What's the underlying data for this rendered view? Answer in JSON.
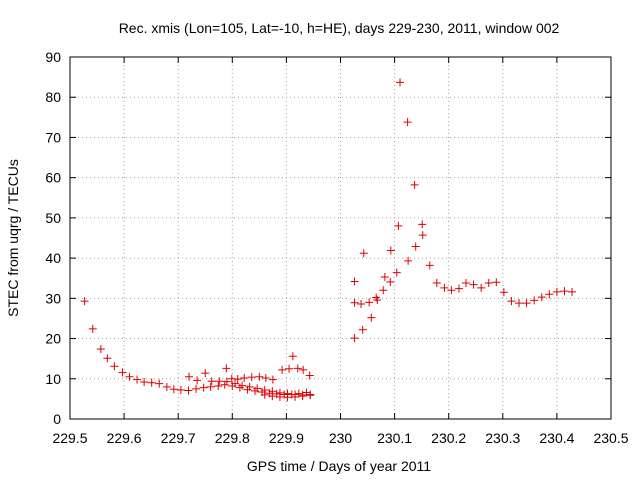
{
  "chart_data": {
    "type": "scatter",
    "title": "Rec. xmis (Lon=105, Lat=-10, h=HE), days 229-230, 2011, window 002",
    "xlabel": "GPS time / Days of year 2011",
    "ylabel": "STEC from uqrg / TECUs",
    "xlim": [
      229.5,
      230.5
    ],
    "ylim": [
      0,
      90
    ],
    "xticks": [
      229.5,
      229.6,
      229.7,
      229.8,
      229.9,
      230,
      230.1,
      230.2,
      230.3,
      230.4,
      230.5
    ],
    "xtick_labels": [
      "229.5",
      "229.6",
      "229.7",
      "229.8",
      "229.9",
      "230",
      "230.1",
      "230.2",
      "230.3",
      "230.4",
      "230.5"
    ],
    "yticks": [
      0,
      10,
      20,
      30,
      40,
      50,
      60,
      70,
      80,
      90
    ],
    "ytick_labels": [
      "0",
      "10",
      "20",
      "30",
      "40",
      "50",
      "60",
      "70",
      "80",
      "90"
    ],
    "grid": true,
    "legend": "none",
    "marker": "plus",
    "color": "#e00000",
    "series": [
      {
        "points": [
          [
            229.527,
            29.3
          ],
          [
            229.542,
            22.4
          ],
          [
            229.557,
            17.4
          ],
          [
            229.569,
            15.1
          ],
          [
            229.582,
            13.1
          ],
          [
            229.597,
            11.6
          ],
          [
            229.61,
            10.5
          ],
          [
            229.624,
            9.8
          ],
          [
            229.637,
            9.2
          ],
          [
            229.651,
            9.0
          ],
          [
            229.665,
            8.8
          ],
          [
            229.679,
            8.0
          ],
          [
            229.692,
            7.4
          ],
          [
            229.705,
            7.2
          ],
          [
            229.719,
            7.1
          ],
          [
            229.733,
            7.5
          ],
          [
            229.747,
            7.8
          ],
          [
            229.76,
            8.0
          ],
          [
            229.774,
            8.2
          ],
          [
            229.786,
            8.5
          ],
          [
            229.8,
            8.2
          ],
          [
            229.814,
            7.8
          ],
          [
            229.828,
            7.3
          ],
          [
            229.842,
            7.0
          ],
          [
            229.855,
            6.7
          ],
          [
            229.869,
            6.4
          ],
          [
            229.882,
            6.2
          ],
          [
            229.896,
            6.1
          ],
          [
            229.91,
            6.1
          ],
          [
            229.923,
            6.3
          ],
          [
            229.937,
            6.6
          ],
          [
            229.72,
            10.5
          ],
          [
            229.735,
            9.6
          ],
          [
            229.75,
            11.4
          ],
          [
            229.762,
            9.4
          ],
          [
            229.776,
            9.4
          ],
          [
            229.789,
            12.6
          ],
          [
            229.799,
            10.0
          ],
          [
            229.81,
            9.9
          ],
          [
            229.822,
            10.2
          ],
          [
            229.836,
            10.4
          ],
          [
            229.85,
            10.5
          ],
          [
            229.862,
            10.2
          ],
          [
            229.875,
            9.8
          ],
          [
            229.79,
            9.3
          ],
          [
            229.805,
            8.8
          ],
          [
            229.818,
            8.3
          ],
          [
            229.832,
            8.0
          ],
          [
            229.846,
            7.6
          ],
          [
            229.86,
            7.2
          ],
          [
            229.874,
            6.9
          ],
          [
            229.888,
            6.5
          ],
          [
            229.902,
            6.3
          ],
          [
            229.916,
            6.1
          ],
          [
            229.93,
            6.0
          ],
          [
            229.944,
            6.1
          ],
          [
            229.86,
            6.0
          ],
          [
            229.874,
            5.7
          ],
          [
            229.888,
            5.5
          ],
          [
            229.902,
            5.4
          ],
          [
            229.916,
            5.5
          ],
          [
            229.93,
            5.7
          ],
          [
            229.944,
            5.9
          ],
          [
            229.892,
            12.2
          ],
          [
            229.905,
            12.5
          ],
          [
            229.912,
            15.6
          ],
          [
            229.921,
            12.6
          ],
          [
            229.931,
            12.2
          ],
          [
            229.943,
            10.8
          ],
          [
            230.026,
            34.2
          ],
          [
            230.026,
            28.9
          ],
          [
            230.026,
            20.1
          ],
          [
            230.038,
            28.6
          ],
          [
            230.041,
            22.2
          ],
          [
            230.043,
            41.2
          ],
          [
            230.053,
            29.0
          ],
          [
            230.057,
            25.2
          ],
          [
            230.066,
            30.2
          ],
          [
            230.068,
            29.6
          ],
          [
            230.079,
            32.0
          ],
          [
            230.082,
            35.3
          ],
          [
            230.092,
            34.1
          ],
          [
            230.093,
            41.9
          ],
          [
            230.104,
            36.4
          ],
          [
            230.107,
            48.0
          ],
          [
            230.11,
            83.7
          ],
          [
            230.124,
            73.8
          ],
          [
            230.125,
            39.3
          ],
          [
            230.137,
            58.2
          ],
          [
            230.139,
            42.9
          ],
          [
            230.151,
            48.4
          ],
          [
            230.152,
            45.7
          ],
          [
            230.165,
            38.2
          ],
          [
            230.178,
            33.8
          ],
          [
            230.192,
            32.6
          ],
          [
            230.205,
            32.0
          ],
          [
            230.219,
            32.4
          ],
          [
            230.232,
            33.8
          ],
          [
            230.246,
            33.4
          ],
          [
            230.26,
            32.6
          ],
          [
            230.274,
            33.8
          ],
          [
            230.288,
            34.0
          ],
          [
            230.302,
            31.5
          ],
          [
            230.316,
            29.3
          ],
          [
            230.33,
            28.8
          ],
          [
            230.344,
            28.8
          ],
          [
            230.358,
            29.5
          ],
          [
            230.372,
            30.3
          ],
          [
            230.386,
            31.0
          ],
          [
            230.4,
            31.6
          ],
          [
            230.414,
            31.8
          ],
          [
            230.428,
            31.6
          ]
        ]
      }
    ]
  }
}
